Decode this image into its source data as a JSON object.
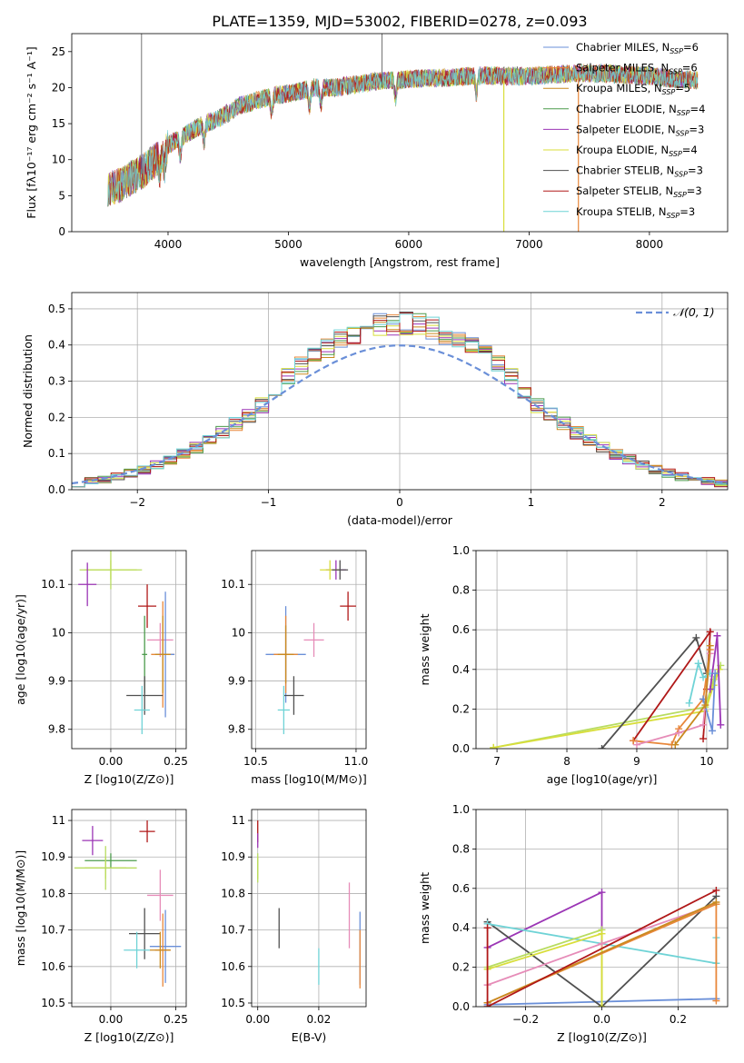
{
  "figure_title": "PLATE=1359, MJD=53002, FIBERID=0278, z=0.093",
  "colors": {
    "Chabrier MILES": "#6a8fd8",
    "Salpeter MILES": "#e8873a",
    "Kroupa MILES": "#c98a20",
    "Chabrier ELODIE": "#4c9b4c",
    "Salpeter ELODIE": "#9b35b5",
    "Kroupa ELODIE": "#d8de3a",
    "Chabrier STELIB": "#505050",
    "Salpeter STELIB": "#b01818",
    "Kroupa STELIB": "#6fd3d6",
    "Mixed green": "#b8dc60",
    "Pink": "#e68cb8"
  },
  "chart_data": [
    {
      "id": "spectrum",
      "type": "line",
      "title": "PLATE=1359, MJD=53002, FIBERID=0278, z=0.093",
      "xlabel": "wavelength [Angstrom, rest frame]",
      "ylabel": "Flux [fλ10⁻¹⁷ erg cm⁻² s⁻¹ A⁻¹]",
      "xlim": [
        3200,
        8650
      ],
      "ylim": [
        0,
        27.5
      ],
      "xticks": [
        4000,
        5000,
        6000,
        7000,
        8000
      ],
      "yticks": [
        0,
        5,
        10,
        15,
        20,
        25
      ],
      "grid": false,
      "legend_position": "top-right",
      "legend": [
        {
          "name": "Chabrier MILES, N",
          "sub": "SSP",
          "rest": "=6"
        },
        {
          "name": "Salpeter MILES, N",
          "sub": "SSP",
          "rest": "=6"
        },
        {
          "name": "Kroupa MILES, N",
          "sub": "SSP",
          "rest": "=5"
        },
        {
          "name": "Chabrier ELODIE, N",
          "sub": "SSP",
          "rest": "=4"
        },
        {
          "name": "Salpeter ELODIE, N",
          "sub": "SSP",
          "rest": "=3"
        },
        {
          "name": "Kroupa ELODIE, N",
          "sub": "SSP",
          "rest": "=4"
        },
        {
          "name": "Chabrier STELIB, N",
          "sub": "SSP",
          "rest": "=3"
        },
        {
          "name": "Salpeter STELIB, N",
          "sub": "SSP",
          "rest": "=3"
        },
        {
          "name": "Kroupa STELIB, N",
          "sub": "SSP",
          "rest": "=3"
        }
      ],
      "continuum": {
        "x": [
          3500,
          3600,
          3700,
          3800,
          3900,
          4000,
          4100,
          4200,
          4300,
          4400,
          4500,
          4600,
          4700,
          4800,
          4900,
          5000,
          5100,
          5200,
          5300,
          5400,
          5500,
          5600,
          5700,
          5800,
          5900,
          6000,
          6200,
          6400,
          6600,
          6800,
          7000,
          7200,
          7400,
          7600,
          7800,
          8000,
          8200,
          8400
        ],
        "y": [
          6,
          6.5,
          7.5,
          8.5,
          10,
          12,
          13,
          14,
          15,
          15.5,
          16.5,
          17.5,
          18,
          18.5,
          19,
          19.2,
          19.5,
          20,
          20,
          20,
          20.3,
          20.5,
          20.8,
          21,
          21,
          21.2,
          21.3,
          21.5,
          21.7,
          21.6,
          21.6,
          21.8,
          22,
          22,
          21.8,
          21.6,
          21.2,
          21
        ]
      }
    },
    {
      "id": "residuals",
      "type": "bar",
      "xlabel": "(data-model)/error",
      "ylabel": "Normed distribution",
      "xlim": [
        -2.5,
        2.5
      ],
      "ylim": [
        0,
        0.545
      ],
      "xticks": [
        -2,
        -1,
        0,
        1,
        2
      ],
      "yticks": [
        0.0,
        0.1,
        0.2,
        0.3,
        0.4,
        0.5
      ],
      "grid": true,
      "legend_position": "top-right",
      "legend": [
        {
          "name": "𝒩(0, 1)"
        }
      ],
      "bin_width": 0.1,
      "bin_start": -2.5,
      "reference_curve": {
        "mean": 0,
        "sigma": 1
      }
    },
    {
      "id": "age-vs-Z",
      "type": "scatter",
      "xlabel": "Z [log10(Z/Z⊙)]",
      "ylabel": "age  [log10(age/yr)]",
      "xlim": [
        -0.15,
        0.29
      ],
      "ylim": [
        9.76,
        10.17
      ],
      "xticks": [
        0.0,
        0.25
      ],
      "xticklabels": [
        "0.00",
        "0.25"
      ],
      "yticks": [
        9.8,
        9.9,
        10.0,
        10.1
      ],
      "grid": true,
      "points": [
        {
          "series": "Kroupa ELODIE",
          "x": 0.0,
          "y": 10.13,
          "xerr": 0.1,
          "yerr": 0.02
        },
        {
          "series": "Mixed green",
          "x": 0.0,
          "y": 10.13,
          "xerr": 0.12,
          "yerr": 0.04
        },
        {
          "series": "Salpeter ELODIE",
          "x": -0.09,
          "y": 10.1,
          "xerr": 0.035,
          "yerr": 0.045
        },
        {
          "series": "Salpeter STELIB",
          "x": 0.14,
          "y": 10.055,
          "xerr": 0.035,
          "yerr": 0.045
        },
        {
          "series": "Pink",
          "x": 0.19,
          "y": 9.985,
          "xerr": 0.05,
          "yerr": 0.035
        },
        {
          "series": "Salpeter MILES",
          "x": 0.2,
          "y": 9.955,
          "xerr": 0.045,
          "yerr": 0.11
        },
        {
          "series": "Chabrier MILES",
          "x": 0.21,
          "y": 9.955,
          "xerr": 0.035,
          "yerr": 0.13
        },
        {
          "series": "Kroupa MILES",
          "x": 0.2,
          "y": 9.955,
          "xerr": 0.03,
          "yerr": 0.08
        },
        {
          "series": "Chabrier ELODIE",
          "x": 0.13,
          "y": 9.955,
          "xerr": 0.01,
          "yerr": 0.08
        },
        {
          "series": "Chabrier STELIB",
          "x": 0.13,
          "y": 9.87,
          "xerr": 0.07,
          "yerr": 0.04
        },
        {
          "series": "Kroupa STELIB",
          "x": 0.12,
          "y": 9.84,
          "xerr": 0.03,
          "yerr": 0.05
        }
      ]
    },
    {
      "id": "age-vs-mass",
      "type": "scatter",
      "xlabel": "mass [log10(M/M⊙)]",
      "ylabel": "",
      "xlim": [
        10.48,
        11.05
      ],
      "ylim": [
        9.76,
        10.17
      ],
      "xticks": [
        10.5,
        11.0
      ],
      "xticklabels": [
        "10.5",
        "11.0"
      ],
      "yticks": [
        9.8,
        9.9,
        10.0,
        10.1
      ],
      "grid": true,
      "points": [
        {
          "series": "Salpeter ELODIE",
          "x": 10.9,
          "y": 10.13,
          "xerr": 0.05,
          "yerr": 0.02
        },
        {
          "series": "Kroupa ELODIE",
          "x": 10.87,
          "y": 10.13,
          "xerr": 0.05,
          "yerr": 0.02
        },
        {
          "series": "Chabrier STELIB",
          "x": 10.92,
          "y": 10.13,
          "xerr": 0.04,
          "yerr": 0.02
        },
        {
          "series": "Salpeter STELIB",
          "x": 10.96,
          "y": 10.055,
          "xerr": 0.04,
          "yerr": 0.03
        },
        {
          "series": "Pink",
          "x": 10.79,
          "y": 9.985,
          "xerr": 0.05,
          "yerr": 0.035
        },
        {
          "series": "Chabrier MILES",
          "x": 10.65,
          "y": 9.955,
          "xerr": 0.1,
          "yerr": 0.1
        },
        {
          "series": "Salpeter MILES",
          "x": 10.65,
          "y": 9.955,
          "xerr": 0.06,
          "yerr": 0.08
        },
        {
          "series": "Kroupa MILES",
          "x": 10.65,
          "y": 9.955,
          "xerr": 0.04,
          "yerr": 0.06
        },
        {
          "series": "Chabrier STELIB",
          "x": 10.69,
          "y": 9.87,
          "xerr": 0.05,
          "yerr": 0.04
        },
        {
          "series": "Kroupa STELIB",
          "x": 10.64,
          "y": 9.84,
          "xerr": 0.03,
          "yerr": 0.05
        }
      ]
    },
    {
      "id": "massweight-vs-age",
      "type": "line",
      "xlabel": "age  [log10(age/yr)]",
      "ylabel": "mass weight",
      "xlim": [
        6.7,
        10.3
      ],
      "ylim": [
        0,
        1.0
      ],
      "xticks": [
        7,
        8,
        9,
        10
      ],
      "yticks": [
        0.0,
        0.2,
        0.4,
        0.6,
        0.8,
        1.0
      ],
      "grid": true,
      "series": [
        {
          "name": "Mixed green",
          "x": [
            6.95,
            9.98,
            10.1,
            10.2
          ],
          "y": [
            0.005,
            0.21,
            0.35,
            0.42
          ]
        },
        {
          "name": "Kroupa ELODIE",
          "x": [
            6.95,
            9.98,
            10.1,
            10.18
          ],
          "y": [
            0.005,
            0.19,
            0.32,
            0.4
          ]
        },
        {
          "name": "Chabrier STELIB",
          "x": [
            8.5,
            9.85,
            10.0
          ],
          "y": [
            0.0,
            0.56,
            0.38
          ]
        },
        {
          "name": "Salpeter STELIB",
          "x": [
            8.95,
            10.05,
            10.0,
            9.95
          ],
          "y": [
            0.04,
            0.59,
            0.3,
            0.05
          ]
        },
        {
          "name": "Salpeter MILES",
          "x": [
            8.95,
            9.5,
            9.6,
            9.95,
            10.05
          ],
          "y": [
            0.04,
            0.02,
            0.1,
            0.25,
            0.5
          ]
        },
        {
          "name": "Pink",
          "x": [
            9.0,
            9.6,
            9.95,
            10.05
          ],
          "y": [
            0.02,
            0.08,
            0.12,
            0.48
          ]
        },
        {
          "name": "Kroupa STELIB",
          "x": [
            9.75,
            9.88,
            9.95,
            10.05
          ],
          "y": [
            0.23,
            0.43,
            0.36,
            0.38
          ]
        },
        {
          "name": "Salpeter ELODIE",
          "x": [
            10.05,
            10.15,
            10.2
          ],
          "y": [
            0.3,
            0.57,
            0.12
          ]
        },
        {
          "name": "Chabrier MILES",
          "x": [
            9.95,
            10.08,
            10.12
          ],
          "y": [
            0.25,
            0.09,
            0.38
          ]
        },
        {
          "name": "Kroupa MILES",
          "x": [
            9.55,
            9.98,
            10.05
          ],
          "y": [
            0.02,
            0.22,
            0.52
          ]
        }
      ]
    },
    {
      "id": "mass-vs-Z",
      "type": "scatter",
      "xlabel": "Z [log10(Z/Z⊙)]",
      "ylabel": "mass [log10(M/M⊙)]",
      "xlim": [
        -0.15,
        0.29
      ],
      "ylim": [
        10.49,
        11.03
      ],
      "xticks": [
        0.0,
        0.25
      ],
      "xticklabels": [
        "0.00",
        "0.25"
      ],
      "yticks": [
        10.5,
        10.6,
        10.7,
        10.8,
        10.9,
        11.0
      ],
      "grid": true,
      "points": [
        {
          "series": "Salpeter STELIB",
          "x": 0.14,
          "y": 10.97,
          "xerr": 0.03,
          "yerr": 0.03
        },
        {
          "series": "Salpeter ELODIE",
          "x": -0.07,
          "y": 10.945,
          "xerr": 0.04,
          "yerr": 0.04
        },
        {
          "series": "Chabrier ELODIE",
          "x": 0.0,
          "y": 10.89,
          "xerr": 0.1,
          "yerr": 0.02
        },
        {
          "series": "Kroupa ELODIE",
          "x": -0.02,
          "y": 10.87,
          "xerr": 0.08,
          "yerr": 0.03
        },
        {
          "series": "Mixed green",
          "x": -0.02,
          "y": 10.87,
          "xerr": 0.12,
          "yerr": 0.06
        },
        {
          "series": "Pink",
          "x": 0.19,
          "y": 10.795,
          "xerr": 0.05,
          "yerr": 0.07
        },
        {
          "series": "Chabrier STELIB",
          "x": 0.13,
          "y": 10.69,
          "xerr": 0.06,
          "yerr": 0.07
        },
        {
          "series": "Chabrier MILES",
          "x": 0.21,
          "y": 10.655,
          "xerr": 0.06,
          "yerr": 0.1
        },
        {
          "series": "Salpeter MILES",
          "x": 0.2,
          "y": 10.645,
          "xerr": 0.03,
          "yerr": 0.1
        },
        {
          "series": "Kroupa MILES",
          "x": 0.19,
          "y": 10.645,
          "xerr": 0.04,
          "yerr": 0.05
        },
        {
          "series": "Kroupa STELIB",
          "x": 0.1,
          "y": 10.645,
          "xerr": 0.05,
          "yerr": 0.05
        }
      ]
    },
    {
      "id": "mass-vs-EBV",
      "type": "scatter",
      "xlabel": "E(B-V)",
      "ylabel": "",
      "xlim": [
        -0.002,
        0.0355
      ],
      "ylim": [
        10.49,
        11.03
      ],
      "xticks": [
        0.0,
        0.02
      ],
      "xticklabels": [
        "0.00",
        "0.02"
      ],
      "yticks": [
        10.5,
        10.6,
        10.7,
        10.8,
        10.9,
        11.0
      ],
      "grid": true,
      "points": [
        {
          "series": "Salpeter STELIB",
          "x": 0.0,
          "y": 10.97,
          "xerr": 0,
          "yerr": 0.03
        },
        {
          "series": "Salpeter ELODIE",
          "x": 0.0,
          "y": 10.945,
          "xerr": 0,
          "yerr": 0.02
        },
        {
          "series": "Kroupa ELODIE",
          "x": 0.0,
          "y": 10.87,
          "xerr": 0,
          "yerr": 0.03
        },
        {
          "series": "Mixed green",
          "x": 0.0,
          "y": 10.87,
          "xerr": 0,
          "yerr": 0.04
        },
        {
          "series": "Chabrier STELIB",
          "x": 0.007,
          "y": 10.705,
          "xerr": 0,
          "yerr": 0.055
        },
        {
          "series": "Pink",
          "x": 0.03,
          "y": 10.74,
          "xerr": 0,
          "yerr": 0.09
        },
        {
          "series": "Kroupa STELIB",
          "x": 0.02,
          "y": 10.6,
          "xerr": 0,
          "yerr": 0.05
        },
        {
          "series": "Chabrier MILES",
          "x": 0.0335,
          "y": 10.65,
          "xerr": 0,
          "yerr": 0.1
        },
        {
          "series": "Salpeter MILES",
          "x": 0.0335,
          "y": 10.62,
          "xerr": 0,
          "yerr": 0.08
        }
      ]
    },
    {
      "id": "massweight-vs-Z",
      "type": "line",
      "xlabel": "Z [log10(Z/Z⊙)]",
      "ylabel": "mass weight",
      "xlim": [
        -0.33,
        0.33
      ],
      "ylim": [
        0,
        1.0
      ],
      "xticks": [
        -0.2,
        0.0,
        0.2
      ],
      "xticklabels": [
        "−0.2",
        "0.0",
        "0.2"
      ],
      "yticks": [
        0.0,
        0.2,
        0.4,
        0.6,
        0.8,
        1.0
      ],
      "grid": true,
      "series": [
        {
          "name": "Chabrier MILES",
          "x": [
            -0.3,
            0.3
          ],
          "y": [
            0.01,
            0.04
          ]
        },
        {
          "name": "Salpeter ELODIE",
          "x": [
            -0.3,
            0.0,
            0.0
          ],
          "y": [
            0.3,
            0.58,
            0.0
          ]
        },
        {
          "name": "Chabrier STELIB",
          "x": [
            -0.3,
            0.0,
            0.3
          ],
          "y": [
            0.43,
            0.0,
            0.56
          ]
        },
        {
          "name": "Kroupa STELIB",
          "x": [
            -0.3,
            0.3,
            0.3
          ],
          "y": [
            0.42,
            0.22,
            0.35
          ]
        },
        {
          "name": "Mixed green",
          "x": [
            -0.3,
            0.0,
            0.0
          ],
          "y": [
            0.2,
            0.39,
            0.0
          ]
        },
        {
          "name": "Kroupa ELODIE",
          "x": [
            -0.3,
            0.0,
            0.0
          ],
          "y": [
            0.19,
            0.37,
            0.0
          ]
        },
        {
          "name": "Pink",
          "x": [
            -0.3,
            0.0,
            0.3
          ],
          "y": [
            0.11,
            0.32,
            0.52
          ]
        },
        {
          "name": "Salpeter MILES",
          "x": [
            -0.3,
            0.3,
            0.3
          ],
          "y": [
            0.02,
            0.52,
            0.03
          ]
        },
        {
          "name": "Kroupa MILES",
          "x": [
            -0.3,
            0.3
          ],
          "y": [
            0.02,
            0.53
          ]
        },
        {
          "name": "Salpeter STELIB",
          "x": [
            -0.3,
            -0.3,
            0.3
          ],
          "y": [
            0.4,
            0.0,
            0.59
          ]
        }
      ]
    }
  ]
}
